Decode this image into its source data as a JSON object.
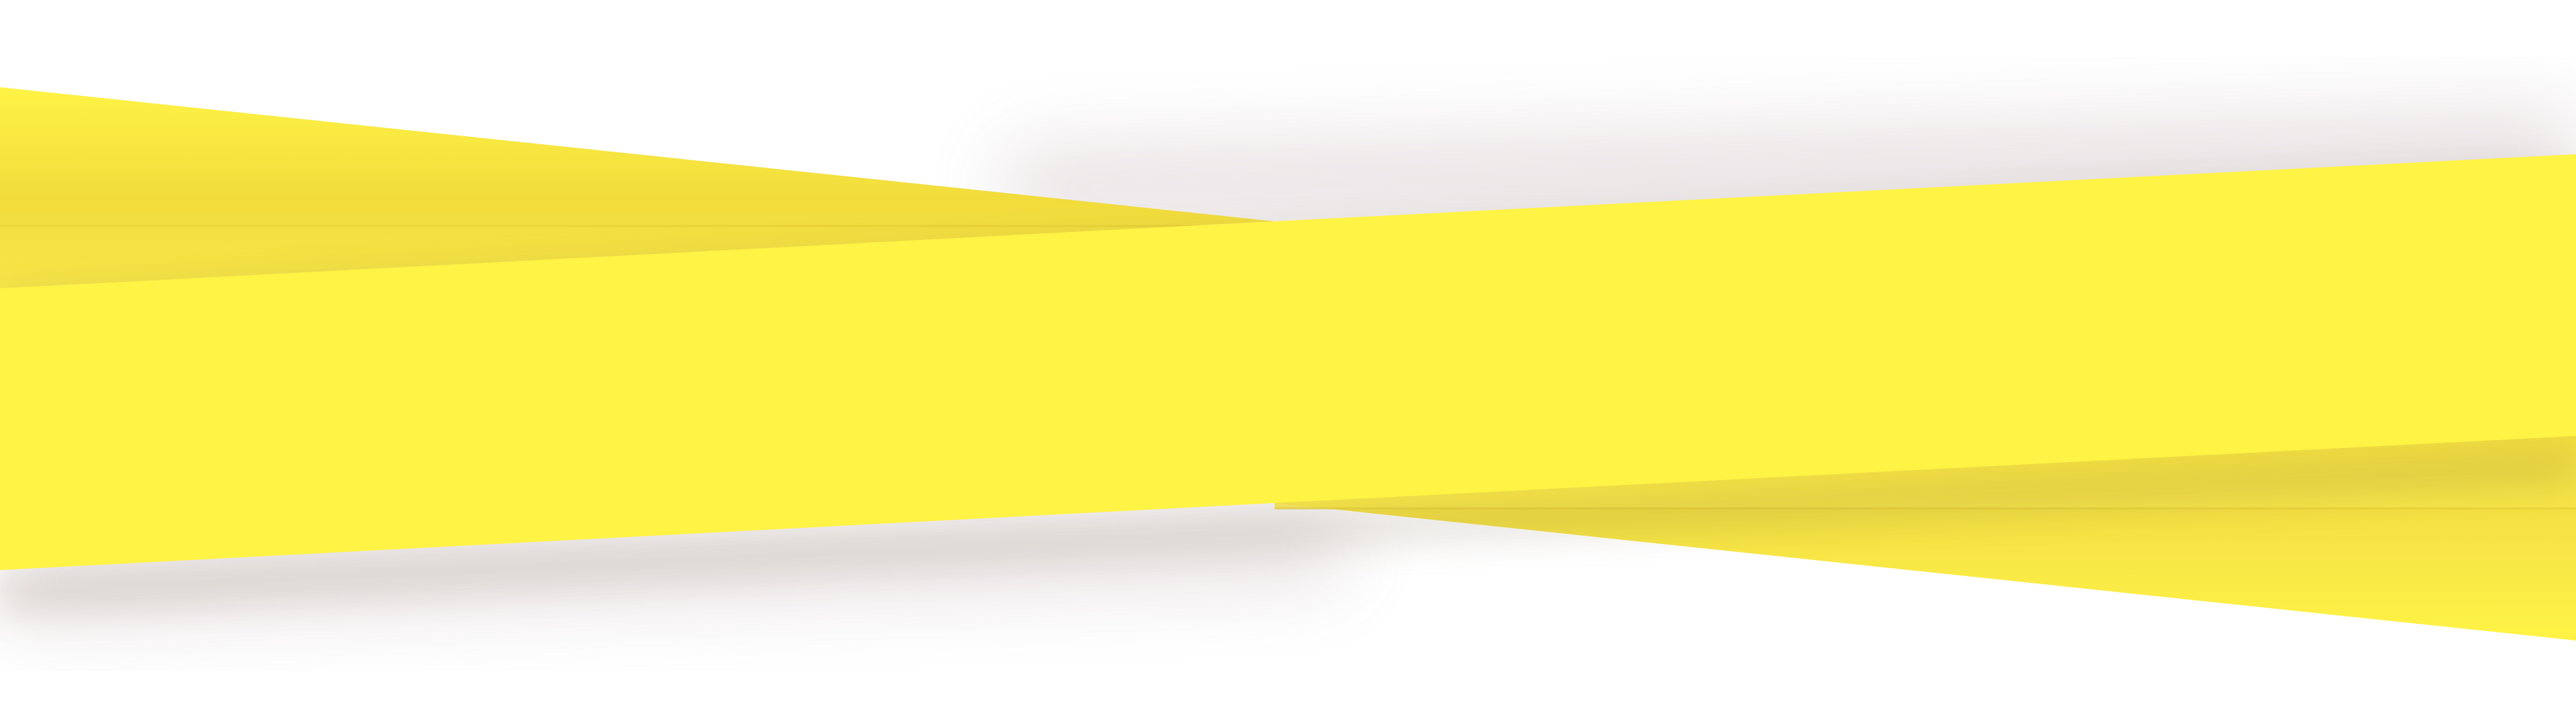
{
  "colors": {
    "background": "#ffffff",
    "band_primary": "#fff345",
    "band_secondary": "#f8e84a",
    "band_shadow_tint": "#e8d43a",
    "ambient_shadow": "#8a6a70"
  }
}
